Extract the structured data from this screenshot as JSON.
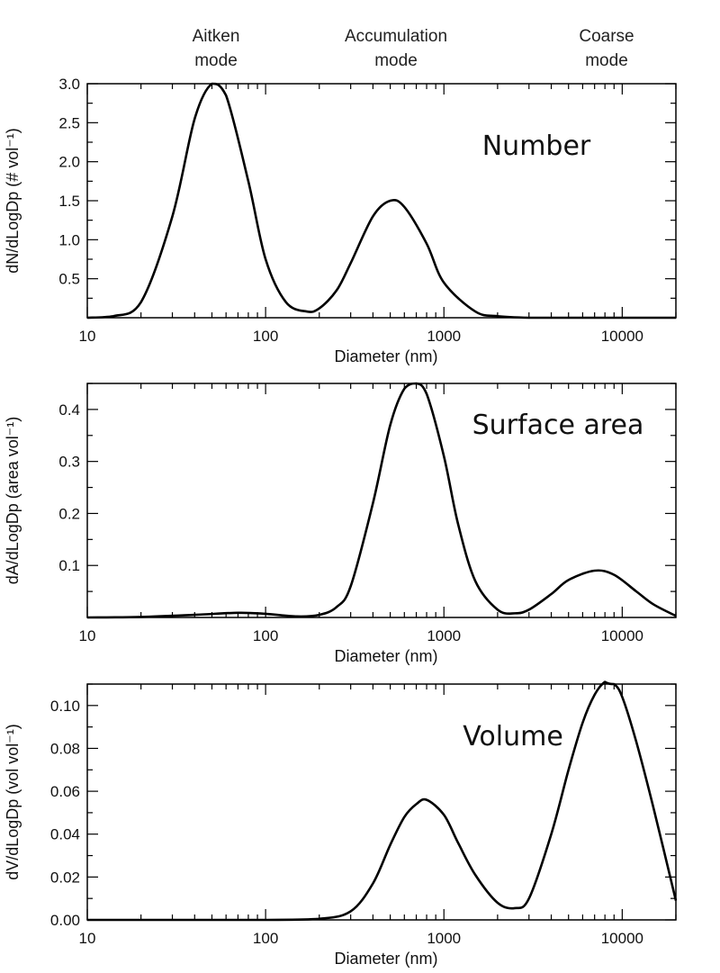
{
  "mode_labels": [
    {
      "line1": "Aitken",
      "line2": "mode"
    },
    {
      "line1": "Accumulation",
      "line2": "mode"
    },
    {
      "line1": "Coarse",
      "line2": "mode"
    }
  ],
  "chart_data": [
    {
      "type": "line",
      "annotation": "Number",
      "xlabel": "Diameter (nm)",
      "ylabel": "dN/dLogDp (# vol⁻¹)",
      "xscale": "log",
      "xlim": [
        10,
        20000
      ],
      "ylim": [
        0,
        3.0
      ],
      "xticks": [
        {
          "v": 10,
          "label": "10"
        },
        {
          "v": 100,
          "label": "100"
        },
        {
          "v": 1000,
          "label": "1000"
        },
        {
          "v": 10000,
          "label": "10000"
        }
      ],
      "yticks": [
        {
          "v": 0.5,
          "label": "0.5"
        },
        {
          "v": 1.0,
          "label": "1.0"
        },
        {
          "v": 1.5,
          "label": "1.5"
        },
        {
          "v": 2.0,
          "label": "2.0"
        },
        {
          "v": 2.5,
          "label": "2.5"
        },
        {
          "v": 3.0,
          "label": "3.0"
        }
      ],
      "y_minor_step": 0.25,
      "series": [
        {
          "x": [
            10,
            14,
            20,
            30,
            40,
            50,
            60,
            80,
            100,
            130,
            170,
            200,
            250,
            300,
            400,
            500,
            600,
            800,
            1000,
            1500,
            2000,
            3000,
            5000,
            10000,
            20000
          ],
          "y": [
            0.0,
            0.02,
            0.2,
            1.3,
            2.55,
            3.0,
            2.85,
            1.75,
            0.75,
            0.2,
            0.08,
            0.12,
            0.35,
            0.7,
            1.3,
            1.5,
            1.42,
            0.95,
            0.45,
            0.08,
            0.02,
            0.0,
            0.0,
            0.0,
            0.0
          ]
        }
      ]
    },
    {
      "type": "line",
      "annotation": "Surface area",
      "xlabel": "Diameter (nm)",
      "ylabel": "dA/dLogDp (area vol⁻¹)",
      "xscale": "log",
      "xlim": [
        10,
        20000
      ],
      "ylim": [
        0,
        0.45
      ],
      "xticks": [
        {
          "v": 10,
          "label": "10"
        },
        {
          "v": 100,
          "label": "100"
        },
        {
          "v": 1000,
          "label": "1000"
        },
        {
          "v": 10000,
          "label": "10000"
        }
      ],
      "yticks": [
        {
          "v": 0.1,
          "label": "0.1"
        },
        {
          "v": 0.2,
          "label": "0.2"
        },
        {
          "v": 0.3,
          "label": "0.3"
        },
        {
          "v": 0.4,
          "label": "0.4"
        }
      ],
      "y_minor_step": 0.05,
      "series": [
        {
          "x": [
            10,
            20,
            40,
            70,
            100,
            150,
            200,
            250,
            300,
            400,
            500,
            600,
            700,
            800,
            1000,
            1200,
            1500,
            2000,
            2500,
            3000,
            4000,
            5000,
            7000,
            9000,
            12000,
            15000,
            20000
          ],
          "y": [
            0.0,
            0.001,
            0.005,
            0.009,
            0.007,
            0.002,
            0.005,
            0.02,
            0.06,
            0.22,
            0.37,
            0.44,
            0.45,
            0.43,
            0.31,
            0.18,
            0.07,
            0.015,
            0.008,
            0.015,
            0.045,
            0.072,
            0.09,
            0.082,
            0.05,
            0.025,
            0.003
          ]
        }
      ]
    },
    {
      "type": "line",
      "annotation": "Volume",
      "xlabel": "Diameter (nm)",
      "ylabel": "dV/dLogDp (vol vol⁻¹)",
      "xscale": "log",
      "xlim": [
        10,
        20000
      ],
      "ylim": [
        0,
        0.11
      ],
      "xticks": [
        {
          "v": 10,
          "label": "10"
        },
        {
          "v": 100,
          "label": "100"
        },
        {
          "v": 1000,
          "label": "1000"
        },
        {
          "v": 10000,
          "label": "10000"
        }
      ],
      "yticks": [
        {
          "v": 0.0,
          "label": "0.00"
        },
        {
          "v": 0.02,
          "label": "0.02"
        },
        {
          "v": 0.04,
          "label": "0.04"
        },
        {
          "v": 0.06,
          "label": "0.06"
        },
        {
          "v": 0.08,
          "label": "0.08"
        },
        {
          "v": 0.1,
          "label": "0.10"
        }
      ],
      "y_minor_step": 0.01,
      "series": [
        {
          "x": [
            10,
            50,
            100,
            200,
            300,
            400,
            500,
            600,
            700,
            800,
            1000,
            1200,
            1500,
            2000,
            2500,
            3000,
            4000,
            5000,
            6000,
            7000,
            8000,
            9000,
            10000,
            12000,
            15000,
            20000
          ],
          "y": [
            0.0,
            0.0,
            0.0,
            0.0005,
            0.004,
            0.017,
            0.035,
            0.048,
            0.054,
            0.056,
            0.049,
            0.036,
            0.021,
            0.008,
            0.0055,
            0.01,
            0.04,
            0.07,
            0.092,
            0.105,
            0.111,
            0.11,
            0.104,
            0.083,
            0.052,
            0.009
          ]
        }
      ]
    }
  ]
}
